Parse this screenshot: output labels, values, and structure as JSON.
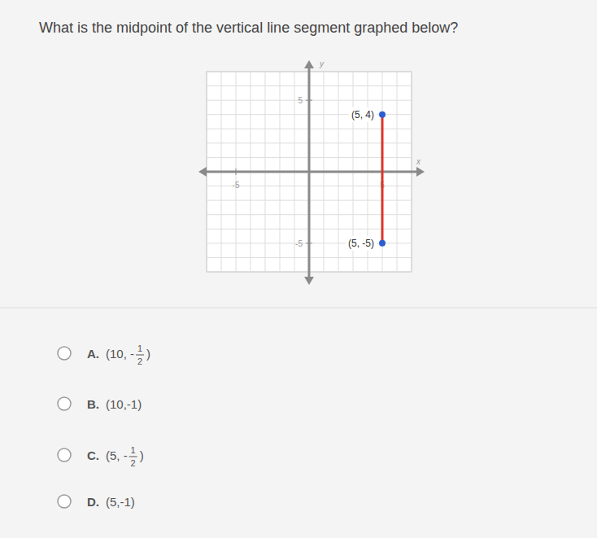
{
  "question": "What is the midpoint of the vertical line segment graphed below?",
  "chart_data": {
    "type": "line",
    "x_label": "x",
    "y_label": "y",
    "x": [
      5,
      5
    ],
    "series": [
      {
        "values": [
          4,
          -5
        ],
        "value_labels": [
          "(5, 4)",
          "(5, -5)"
        ],
        "color": "#d9352b",
        "marker": "circle"
      }
    ],
    "data_labels": true,
    "xlim": [
      -7,
      7
    ],
    "ylim": [
      -7,
      7
    ],
    "xticks": [
      -5,
      5
    ],
    "yticks": [
      -5,
      5
    ],
    "grid": true
  },
  "options": [
    {
      "letter": "A.",
      "parts": [
        "(10, -",
        {
          "num": "1",
          "den": "2"
        },
        ")"
      ]
    },
    {
      "letter": "B.",
      "parts": [
        "(10,-1)"
      ]
    },
    {
      "letter": "C.",
      "parts": [
        "(5, -",
        {
          "num": "1",
          "den": "2"
        },
        ")"
      ]
    },
    {
      "letter": "D.",
      "parts": [
        "(5,-1)"
      ]
    }
  ]
}
